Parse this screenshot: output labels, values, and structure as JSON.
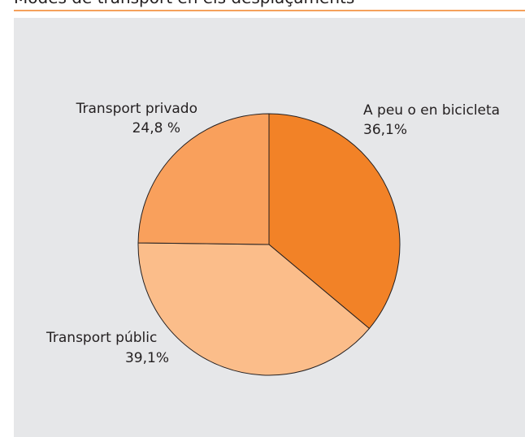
{
  "chart_data": {
    "type": "pie",
    "title": "Modes de transport en els desplaçaments",
    "categories": [
      "A peu o en bicicleta",
      "Transport públic",
      "Transport privado"
    ],
    "values": [
      36.1,
      39.1,
      24.8
    ],
    "value_labels": [
      "36,1%",
      "39,1%",
      "24,8 %"
    ],
    "colors": [
      "#f28227",
      "#fbbd8a",
      "#f9a05c"
    ]
  }
}
